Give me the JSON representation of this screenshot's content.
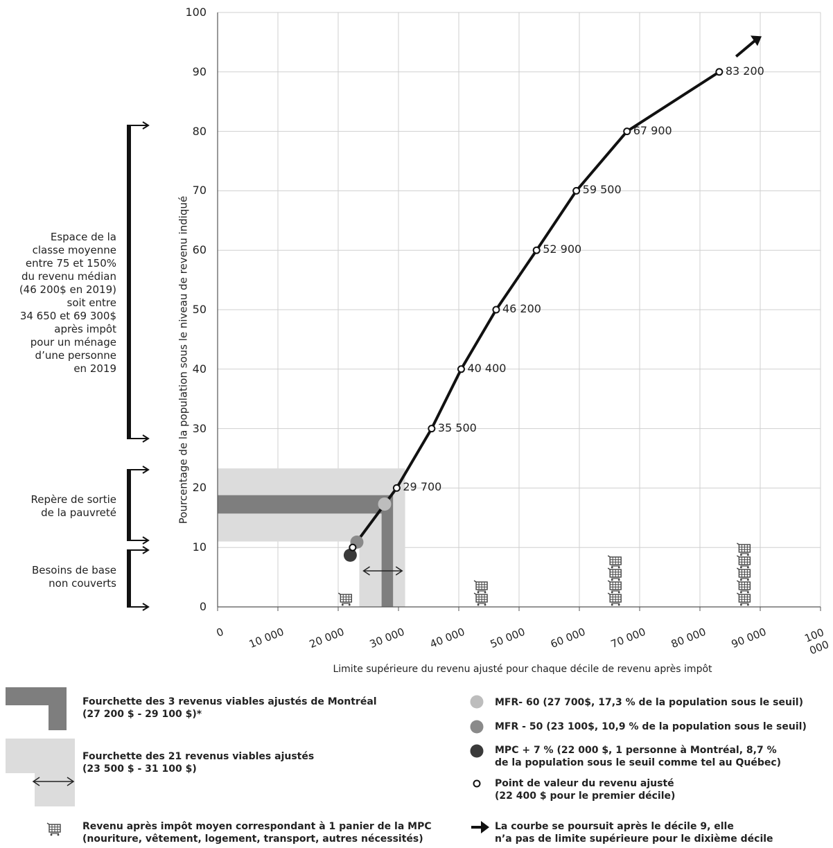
{
  "chart_data": {
    "type": "line",
    "xlabel": "Limite supérieure du revenu ajusté pour chaque décile de revenu après impôt",
    "ylabel": "Pourcentage de la population sous le niveau de revenu indiqué",
    "xlim": [
      0,
      100000
    ],
    "ylim": [
      0,
      100
    ],
    "grid": true,
    "x_ticks": [
      0,
      10000,
      20000,
      30000,
      40000,
      50000,
      60000,
      70000,
      80000,
      90000,
      100000
    ],
    "x_tick_labels": [
      "0",
      "10 000",
      "20 000",
      "30 000",
      "40 000",
      "50 000",
      "60 000",
      "70 000",
      "80 000",
      "90 000",
      "100 000"
    ],
    "y_ticks": [
      0,
      10,
      20,
      30,
      40,
      50,
      60,
      70,
      80,
      90,
      100
    ],
    "y_tick_labels": [
      "0",
      "10",
      "20",
      "30",
      "40",
      "50",
      "60",
      "70",
      "80",
      "90",
      "100"
    ],
    "series": [
      {
        "points": [
          {
            "x": 22400,
            "y": 10
          },
          {
            "x": 29700,
            "y": 20,
            "label": "29 700"
          },
          {
            "x": 35500,
            "y": 30,
            "label": "35 500"
          },
          {
            "x": 40400,
            "y": 40,
            "label": "40 400"
          },
          {
            "x": 46200,
            "y": 50,
            "label": "46 200"
          },
          {
            "x": 52900,
            "y": 60,
            "label": "52 900"
          },
          {
            "x": 59500,
            "y": 70,
            "label": "59 500"
          },
          {
            "x": 67900,
            "y": 80,
            "label": "67 900"
          },
          {
            "x": 83200,
            "y": 90,
            "label": "83 200"
          }
        ]
      }
    ],
    "markers": [
      {
        "name": "MFR- 60",
        "x": 27700,
        "y": 17.3,
        "color": "#bdbdbd"
      },
      {
        "name": "MFR - 50",
        "x": 23100,
        "y": 10.9,
        "color": "#8a8a8a"
      },
      {
        "name": "MPC + 7 %",
        "x": 22000,
        "y": 8.7,
        "color": "#3a3a3a"
      }
    ],
    "bands": {
      "light": {
        "x_range": [
          23500,
          31100
        ],
        "y_range": [
          11,
          23.3
        ],
        "color": "#dcdcdc"
      },
      "dark": {
        "x_range": [
          27200,
          29100
        ],
        "y_range": [
          15.7,
          18.8
        ],
        "color": "#7e7e7e"
      }
    },
    "baskets": [
      {
        "x": 21300,
        "count": 1
      },
      {
        "x": 43800,
        "count": 2
      },
      {
        "x": 66000,
        "count": 4
      },
      {
        "x": 87400,
        "count": 5
      }
    ],
    "continuation_arrow": true
  },
  "side_labels": {
    "middle_class": [
      "Espace de la",
      "classe moyenne",
      "entre 75 et 150%",
      "du revenu médian",
      "(46 200$ en 2019)",
      "soit entre",
      "34 650 et 69 300$",
      "après impôt",
      "pour un ménage",
      "d’une personne",
      "en 2019"
    ],
    "poverty_exit": [
      "Repère de sortie",
      "de la pauvreté"
    ],
    "basic_needs": [
      "Besoins de base",
      "non couverts"
    ]
  },
  "legend": {
    "dark_range": [
      "Fourchette des 3 revenus viables ajustés de Montréal",
      "(27 200 $ - 29 100 $)*"
    ],
    "light_range": [
      "Fourchette des 21 revenus viables ajustés",
      "(23 500 $ - 31 100 $)"
    ],
    "basket": [
      "Revenu après impôt moyen correspondant à 1 panier de la MPC",
      "(nouriture, vêtement, logement, transport, autres nécessités)"
    ],
    "mfr60": "MFR- 60 (27 700$, 17,3 % de la population sous le seuil)",
    "mfr50": "MFR - 50 (23 100$, 10,9 % de la population sous le seuil)",
    "mpc": [
      "MPC + 7 % (22 000 $, 1 personne à Montréal, 8,7 %",
      "de la population sous le seuil comme tel au Québec)"
    ],
    "point": [
      "Point de valeur du revenu ajusté",
      "(22 400 $ pour le premier décile)"
    ],
    "arrow": [
      "La courbe se poursuit après le décile 9, elle",
      "n’a pas de limite supérieure pour le dixième décile"
    ]
  }
}
